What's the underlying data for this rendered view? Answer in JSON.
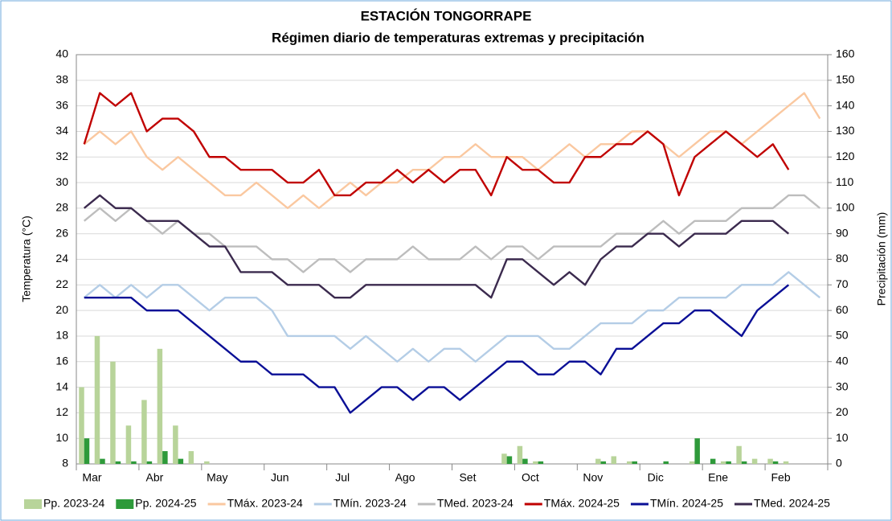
{
  "chart_data": {
    "type": "line",
    "title": "ESTACIÓN TONGORRAPE",
    "subtitle": "Régimen diario de temperaturas extremas y precipitación",
    "ylabel": "Temperatura (°C)",
    "y2label": "Precipitación (mm)",
    "categories": [
      null,
      "Mar",
      null,
      null,
      null,
      "Abr",
      null,
      null,
      null,
      "May",
      null,
      null,
      null,
      "Jun",
      null,
      null,
      null,
      "Jul",
      null,
      null,
      null,
      "Ago",
      null,
      null,
      null,
      "Set",
      null,
      null,
      null,
      "Oct",
      null,
      null,
      null,
      "Nov",
      null,
      null,
      null,
      "Dic",
      null,
      null,
      null,
      "Ene",
      null,
      null,
      null,
      "Feb",
      null,
      null
    ],
    "ylim": [
      8,
      40
    ],
    "yticks": [
      8,
      10,
      12,
      14,
      16,
      18,
      20,
      22,
      24,
      26,
      28,
      30,
      32,
      34,
      36,
      38,
      40
    ],
    "y2lim": [
      0,
      160
    ],
    "y2ticks": [
      0,
      10,
      20,
      30,
      40,
      50,
      60,
      70,
      80,
      90,
      100,
      110,
      120,
      130,
      140,
      150,
      160
    ],
    "legend": "bottom",
    "series": [
      {
        "name": "Pp. 2023-24",
        "type": "bar",
        "axis": "y2",
        "color": "#b8d49a",
        "values": [
          30,
          50,
          40,
          15,
          25,
          45,
          15,
          5,
          1,
          0,
          0,
          0,
          0,
          0,
          0,
          0,
          0,
          0,
          0,
          0,
          0,
          0,
          0,
          0,
          0,
          0,
          0,
          4,
          7,
          1,
          0,
          0,
          0,
          2,
          3,
          1,
          0,
          0,
          0,
          1,
          0,
          1,
          7,
          2,
          2,
          1,
          0,
          0
        ]
      },
      {
        "name": "Pp. 2024-25",
        "type": "bar",
        "axis": "y2",
        "color": "#2e9a3a",
        "values": [
          10,
          2,
          1,
          1,
          1,
          5,
          2,
          0,
          0,
          0,
          0,
          0,
          0,
          0,
          0,
          0,
          0,
          0,
          0,
          0,
          0,
          0,
          0,
          0,
          0,
          0,
          0,
          3,
          2,
          1,
          0,
          0,
          0,
          1,
          0,
          1,
          0,
          1,
          0,
          10,
          2,
          1,
          1,
          0,
          1,
          0,
          null,
          null
        ]
      },
      {
        "name": "TMáx. 2023-24",
        "color": "#fac8a0",
        "values": [
          33,
          34,
          33,
          34,
          32,
          31,
          32,
          31,
          30,
          29,
          29,
          30,
          29,
          28,
          29,
          28,
          29,
          30,
          29,
          30,
          30,
          31,
          31,
          32,
          32,
          33,
          32,
          32,
          32,
          31,
          32,
          33,
          32,
          33,
          33,
          34,
          34,
          33,
          32,
          33,
          34,
          34,
          33,
          34,
          35,
          36,
          37,
          35
        ]
      },
      {
        "name": "TMín. 2023-24",
        "color": "#b4cde6",
        "values": [
          21,
          22,
          21,
          22,
          21,
          22,
          22,
          21,
          20,
          21,
          21,
          21,
          20,
          18,
          18,
          18,
          18,
          17,
          18,
          17,
          16,
          17,
          16,
          17,
          17,
          16,
          17,
          18,
          18,
          18,
          17,
          17,
          18,
          19,
          19,
          19,
          20,
          20,
          21,
          21,
          21,
          21,
          22,
          22,
          22,
          23,
          22,
          21
        ]
      },
      {
        "name": "TMed. 2023-24",
        "color": "#bdbdbd",
        "values": [
          27,
          28,
          27,
          28,
          27,
          26,
          27,
          26,
          26,
          25,
          25,
          25,
          24,
          24,
          23,
          24,
          24,
          23,
          24,
          24,
          24,
          25,
          24,
          24,
          24,
          25,
          24,
          25,
          25,
          24,
          25,
          25,
          25,
          25,
          26,
          26,
          26,
          27,
          26,
          27,
          27,
          27,
          28,
          28,
          28,
          29,
          29,
          28
        ]
      },
      {
        "name": "TMáx. 2024-25",
        "color": "#c00000",
        "values": [
          33,
          37,
          36,
          37,
          34,
          35,
          35,
          34,
          32,
          32,
          31,
          31,
          31,
          30,
          30,
          31,
          29,
          29,
          30,
          30,
          31,
          30,
          31,
          30,
          31,
          31,
          29,
          32,
          31,
          31,
          30,
          30,
          32,
          32,
          33,
          33,
          34,
          33,
          29,
          32,
          33,
          34,
          33,
          32,
          33,
          31,
          null,
          null
        ]
      },
      {
        "name": "TMín. 2024-25",
        "color": "#0a0f96",
        "values": [
          21,
          21,
          21,
          21,
          20,
          20,
          20,
          19,
          18,
          17,
          16,
          16,
          15,
          15,
          15,
          14,
          14,
          12,
          13,
          14,
          14,
          13,
          14,
          14,
          13,
          14,
          15,
          16,
          16,
          15,
          15,
          16,
          16,
          15,
          17,
          17,
          18,
          19,
          19,
          20,
          20,
          19,
          18,
          20,
          21,
          22,
          null,
          null
        ]
      },
      {
        "name": "TMed. 2024-25",
        "color": "#3b2a4e",
        "values": [
          28,
          29,
          28,
          28,
          27,
          27,
          27,
          26,
          25,
          25,
          23,
          23,
          23,
          22,
          22,
          22,
          21,
          21,
          22,
          22,
          22,
          22,
          22,
          22,
          22,
          22,
          21,
          24,
          24,
          23,
          22,
          23,
          22,
          24,
          25,
          25,
          26,
          26,
          25,
          26,
          26,
          26,
          27,
          27,
          27,
          26,
          null,
          null
        ]
      }
    ]
  }
}
